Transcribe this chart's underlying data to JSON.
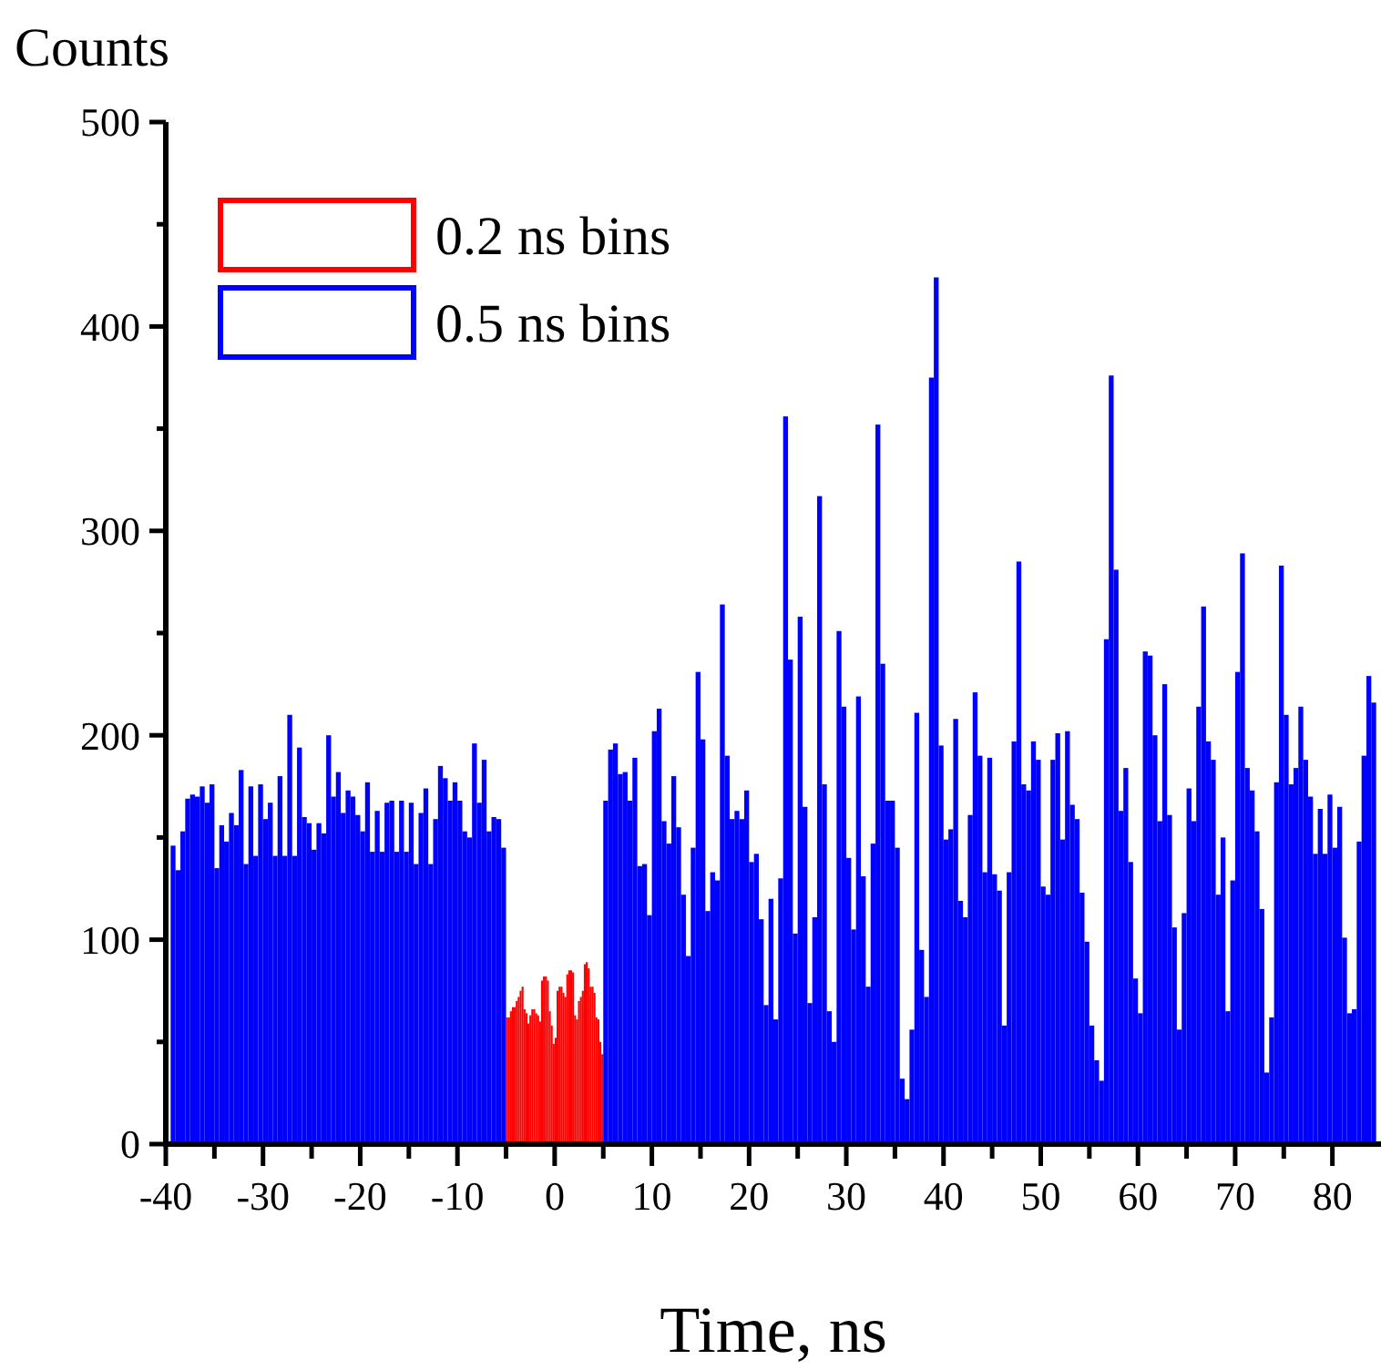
{
  "chart_data": {
    "type": "histogram",
    "xlabel": "Time, ns",
    "ylabel": "Counts",
    "legend": "top left",
    "xlim": [
      -40,
      85
    ],
    "xticks": [
      -40,
      {
        "value": -35,
        "label": null
      },
      -30,
      {
        "value": -25,
        "label": null
      },
      -20,
      {
        "value": -15,
        "label": null
      },
      -10,
      {
        "value": -5,
        "label": null
      },
      0,
      {
        "value": 5,
        "label": null
      },
      10,
      {
        "value": 15,
        "label": null
      },
      20,
      {
        "value": 25,
        "label": null
      },
      30,
      {
        "value": 35,
        "label": null
      },
      40,
      {
        "value": 45,
        "label": null
      },
      50,
      {
        "value": 55,
        "label": null
      },
      60,
      {
        "value": 65,
        "label": null
      },
      70,
      {
        "value": 75,
        "label": null
      },
      80
    ],
    "ylim": [
      0,
      500
    ],
    "yticks": [
      0,
      {
        "value": 50,
        "label": null
      },
      100,
      {
        "value": 150,
        "label": null
      },
      200,
      {
        "value": 250,
        "label": null
      },
      300,
      {
        "value": 350,
        "label": null
      },
      400,
      {
        "value": 450,
        "label": null
      },
      500
    ],
    "bins": [
      -39.5,
      -39,
      -38.5,
      -38,
      -37.5,
      -37,
      -36.5,
      -36,
      -35.5,
      -35,
      -34.5,
      -34,
      -33.5,
      -33,
      -32.5,
      -32,
      -31.5,
      -31,
      -30.5,
      -30,
      -29.5,
      -29,
      -28.5,
      -28,
      -27.5,
      -27,
      -26.5,
      -26,
      -25.5,
      -25,
      -24.5,
      -24,
      -23.5,
      -23,
      -22.5,
      -22,
      -21.5,
      -21,
      -20.5,
      -20,
      -19.5,
      -19,
      -18.5,
      -18,
      -17.5,
      -17,
      -16.5,
      -16,
      -15.5,
      -15,
      -14.5,
      -14,
      -13.5,
      -13,
      -12.5,
      -12,
      -11.5,
      -11,
      -10.5,
      -10,
      -9.5,
      -9,
      -8.5,
      -8,
      -7.5,
      -7,
      -6.5,
      -6,
      -5.5,
      -5,
      -4.8,
      -4.6,
      -4.4,
      -4.2,
      -4,
      -3.8,
      -3.6,
      -3.4,
      -3.2,
      -3,
      -2.8,
      -2.6,
      -2.4,
      -2.2,
      -2,
      -1.8,
      -1.6,
      -1.4,
      -1.2,
      -1,
      -0.8,
      -0.6,
      -0.4,
      -0.2,
      0,
      0.2,
      0.4,
      0.6,
      0.8,
      1,
      1.2,
      1.4,
      1.6,
      1.8,
      2,
      2.2,
      2.4,
      2.6,
      2.8,
      3,
      3.2,
      3.4,
      3.6,
      3.8,
      4,
      4.2,
      4.4,
      4.6,
      4.8,
      5,
      5.5,
      6,
      6.5,
      7,
      7.5,
      8,
      8.5,
      9,
      9.5,
      10,
      10.5,
      11,
      11.5,
      12,
      12.5,
      13,
      13.5,
      14,
      14.5,
      15,
      15.5,
      16,
      16.5,
      17,
      17.5,
      18,
      18.5,
      19,
      19.5,
      20,
      20.5,
      21,
      21.5,
      22,
      22.5,
      23,
      23.5,
      24,
      24.5,
      25,
      25.5,
      26,
      26.5,
      27,
      27.5,
      28,
      28.5,
      29,
      29.5,
      30,
      30.5,
      31,
      31.5,
      32,
      32.5,
      33,
      33.5,
      34,
      34.5,
      35,
      35.5,
      36,
      36.5,
      37,
      37.5,
      38,
      38.5,
      39,
      39.5,
      40,
      40.5,
      41,
      41.5,
      42,
      42.5,
      43,
      43.5,
      44,
      44.5,
      45,
      45.5,
      46,
      46.5,
      47,
      47.5,
      48,
      48.5,
      49,
      49.5,
      50,
      50.5,
      51,
      51.5,
      52,
      52.5,
      53,
      53.5,
      54,
      54.5,
      55,
      55.5,
      56,
      56.5,
      57,
      57.5,
      58,
      58.5,
      59,
      59.5,
      60,
      60.5,
      61,
      61.5,
      62,
      62.5,
      63,
      63.5,
      64,
      64.5,
      65,
      65.5,
      66,
      66.5,
      67,
      67.5,
      68,
      68.5,
      69,
      69.5,
      70,
      70.5,
      71,
      71.5,
      72,
      72.5,
      73,
      73.5,
      74,
      74.5,
      75,
      75.5,
      76,
      76.5,
      77,
      77.5,
      78,
      78.5,
      79,
      79.5,
      80,
      80.5,
      81,
      81.5,
      82,
      82.5,
      83,
      83.5,
      84,
      84.5
    ],
    "series": [
      {
        "name": "0.2 ns bins",
        "color": "#ff0000",
        "values": [
          null,
          null,
          null,
          null,
          null,
          null,
          null,
          null,
          null,
          null,
          null,
          null,
          null,
          null,
          null,
          null,
          null,
          null,
          null,
          null,
          null,
          null,
          null,
          null,
          null,
          null,
          null,
          null,
          null,
          null,
          null,
          null,
          null,
          null,
          null,
          null,
          null,
          null,
          null,
          null,
          null,
          null,
          null,
          null,
          null,
          null,
          null,
          null,
          null,
          null,
          null,
          null,
          null,
          null,
          null,
          null,
          null,
          null,
          null,
          null,
          null,
          null,
          null,
          null,
          null,
          null,
          null,
          null,
          null,
          62,
          62,
          65,
          67,
          67,
          70,
          72,
          75,
          77,
          66,
          64,
          59,
          63,
          66,
          66,
          64,
          63,
          60,
          80,
          82,
          82,
          80,
          65,
          58,
          49,
          52,
          75,
          77,
          77,
          74,
          72,
          83,
          85,
          85,
          84,
          63,
          61,
          70,
          72,
          75,
          88,
          89,
          86,
          77,
          77,
          74,
          62,
          61,
          50,
          44,
          null,
          null,
          null,
          null,
          null,
          null,
          null,
          null,
          null,
          null,
          null,
          null,
          null,
          null,
          null,
          null,
          null,
          null,
          null,
          null,
          null,
          null,
          null,
          null,
          null,
          null,
          null,
          null,
          null,
          null,
          null,
          null,
          null,
          null,
          null,
          null,
          null,
          null,
          null,
          null,
          null,
          null,
          null,
          null,
          null,
          null,
          null,
          null,
          null,
          null,
          null,
          null,
          null,
          null,
          null,
          null,
          null,
          null,
          null,
          null,
          null,
          null,
          null,
          null,
          null,
          null,
          null,
          null,
          null,
          null,
          null,
          null,
          null,
          null,
          null,
          null,
          null,
          null,
          null,
          null,
          null,
          null,
          null,
          null,
          null,
          null,
          null,
          null,
          null,
          null,
          null,
          null,
          null,
          null,
          null,
          null,
          null,
          null,
          null,
          null,
          null,
          null,
          null,
          null,
          null,
          null,
          null,
          null,
          null,
          null,
          null,
          null,
          null,
          null,
          null,
          null,
          null,
          null,
          null,
          null,
          null,
          null,
          null,
          null,
          null,
          null,
          null,
          null,
          null,
          null,
          null,
          null,
          null,
          null,
          null,
          null,
          null,
          null,
          null,
          null,
          null,
          null,
          null,
          null,
          null,
          null,
          null,
          null,
          null,
          null,
          null,
          null,
          null,
          null,
          null,
          null,
          null,
          null,
          null
        ]
      },
      {
        "name": "0.5 ns bins",
        "color": "#0000ff",
        "values": [
          146,
          134,
          153,
          169,
          171,
          170,
          175,
          167,
          176,
          135,
          156,
          148,
          162,
          156,
          183,
          137,
          175,
          141,
          176,
          159,
          167,
          141,
          180,
          141,
          210,
          141,
          194,
          160,
          157,
          144,
          157,
          152,
          200,
          170,
          182,
          162,
          173,
          170,
          161,
          153,
          177,
          143,
          163,
          143,
          167,
          168,
          143,
          168,
          143,
          167,
          137,
          162,
          174,
          137,
          159,
          185,
          179,
          168,
          177,
          168,
          153,
          150,
          196,
          167,
          188,
          153,
          160,
          159,
          145,
          null,
          null,
          null,
          null,
          null,
          null,
          null,
          null,
          null,
          null,
          null,
          null,
          null,
          null,
          null,
          null,
          null,
          null,
          null,
          null,
          null,
          null,
          null,
          null,
          null,
          null,
          null,
          null,
          null,
          null,
          null,
          null,
          null,
          null,
          null,
          null,
          null,
          null,
          null,
          null,
          null,
          null,
          null,
          null,
          null,
          null,
          null,
          null,
          null,
          null,
          168,
          193,
          196,
          181,
          182,
          168,
          189,
          136,
          137,
          112,
          202,
          213,
          158,
          147,
          180,
          155,
          122,
          92,
          145,
          231,
          198,
          114,
          133,
          129,
          264,
          190,
          159,
          163,
          159,
          173,
          138,
          142,
          110,
          68,
          120,
          61,
          130,
          356,
          237,
          103,
          258,
          165,
          69,
          111,
          317,
          176,
          65,
          50,
          251,
          214,
          140,
          105,
          219,
          131,
          77,
          147,
          352,
          235,
          168,
          168,
          145,
          32,
          22,
          56,
          211,
          95,
          72,
          375,
          424,
          195,
          149,
          154,
          208,
          119,
          111,
          161,
          221,
          190,
          133,
          189,
          132,
          124,
          58,
          133,
          197,
          285,
          176,
          173,
          197,
          188,
          126,
          122,
          188,
          201,
          149,
          202,
          166,
          159,
          123,
          99,
          58,
          41,
          31,
          247,
          376,
          281,
          163,
          184,
          138,
          81,
          64,
          241,
          239,
          200,
          158,
          225,
          161,
          106,
          56,
          113,
          174,
          158,
          214,
          263,
          197,
          188,
          122,
          150,
          65,
          129,
          231,
          289,
          184,
          173,
          153,
          115,
          35,
          62,
          177,
          283,
          210,
          176,
          184,
          214,
          188,
          170,
          142,
          164,
          142,
          171,
          145,
          165,
          101,
          64,
          66,
          148,
          190,
          229,
          216
        ]
      }
    ]
  }
}
